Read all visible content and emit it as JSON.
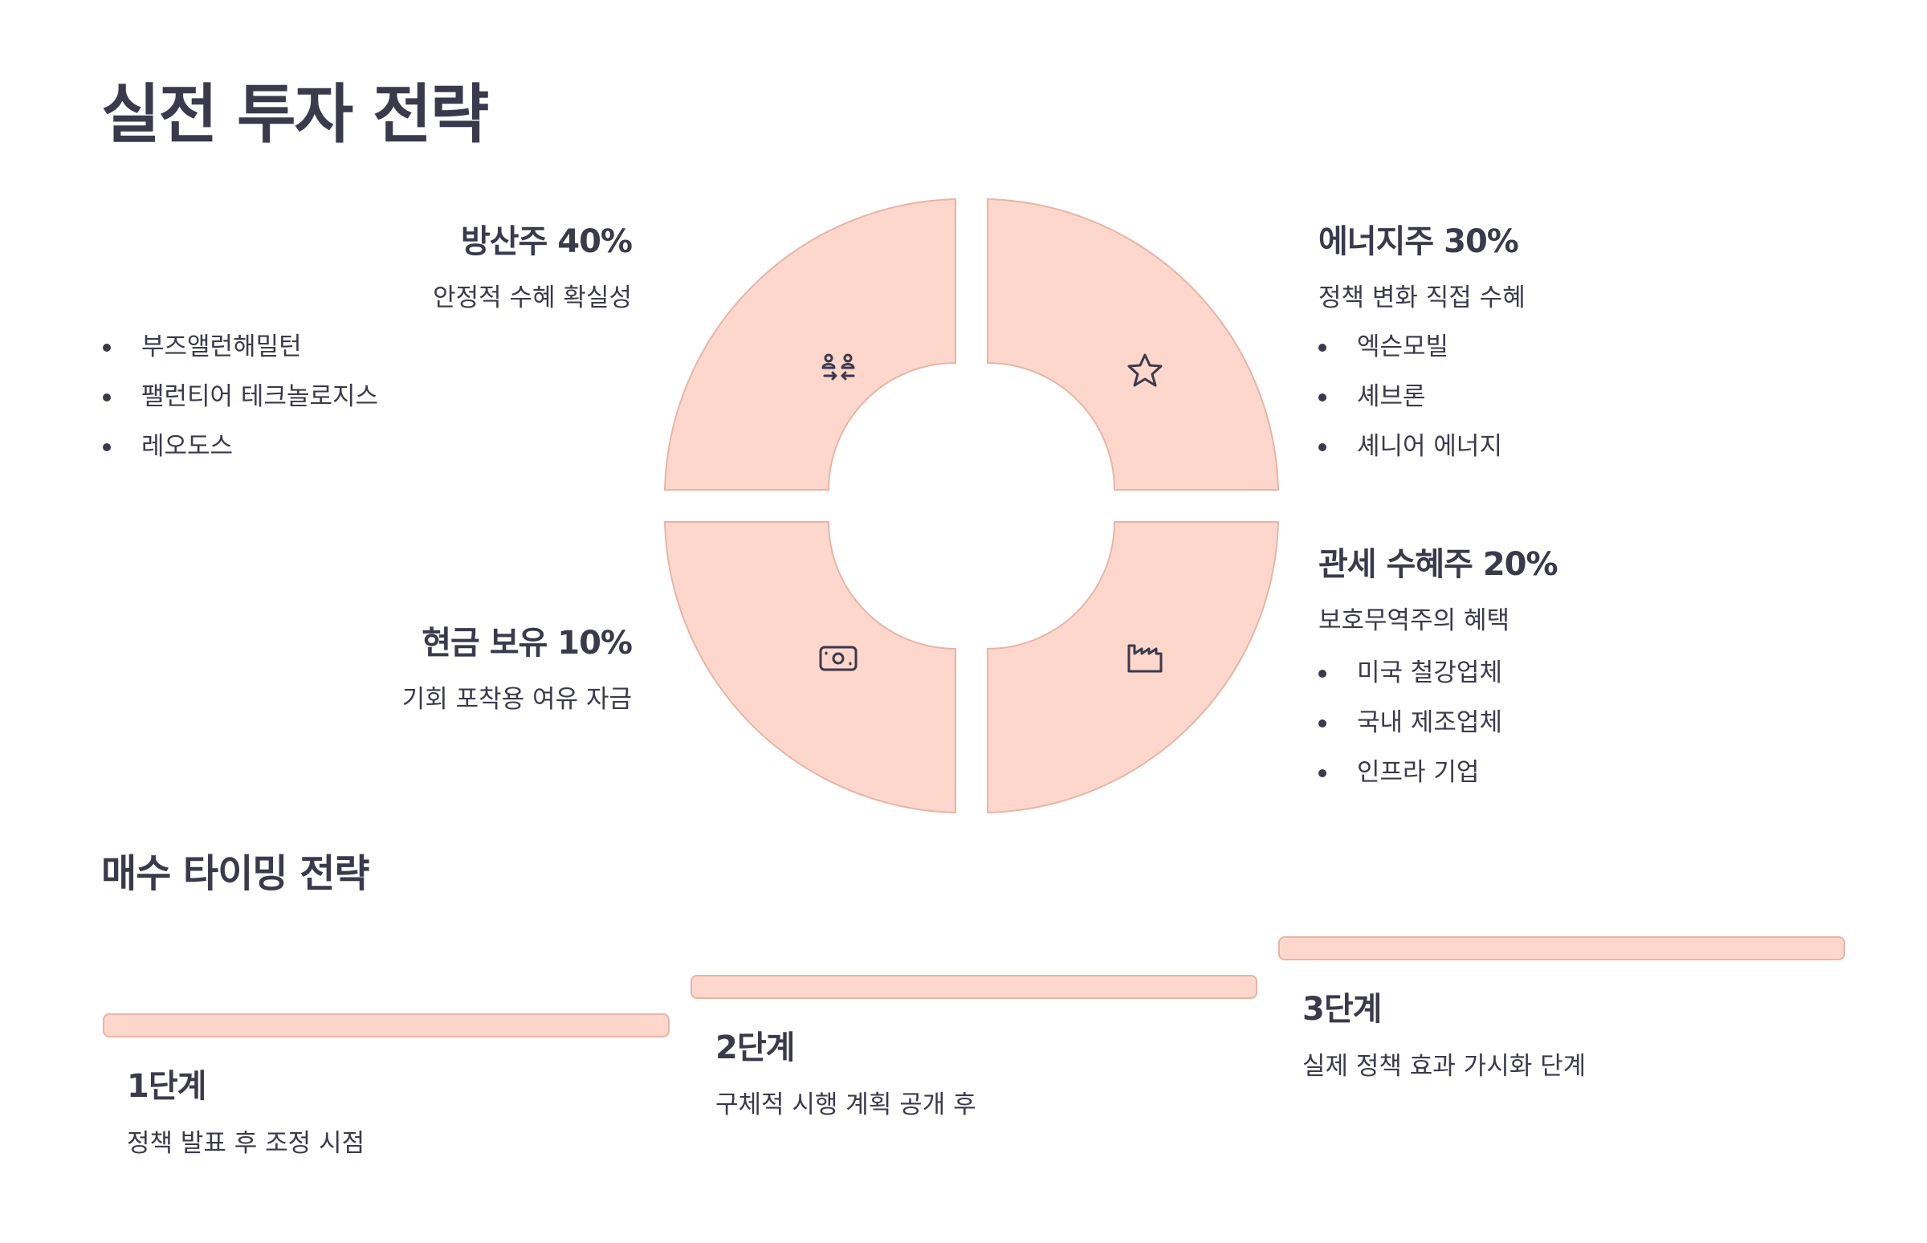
{
  "title": "실전 투자 전략",
  "portfolio": [
    {
      "heading": "방산주 40%",
      "subtitle": "안정적 수혜 확실성",
      "items": [
        "부즈앨런해밀턴",
        "팰런티어 테크놀로지스",
        "레오도스"
      ],
      "icon": "people-exchange-icon"
    },
    {
      "heading": "에너지주 30%",
      "subtitle": "정책 변화 직접 수혜",
      "items": [
        "엑슨모빌",
        "셰브론",
        "셰니어 에너지"
      ],
      "icon": "star-icon"
    },
    {
      "heading": "관세 수혜주 20%",
      "subtitle": "보호무역주의 혜택",
      "items": [
        "미국 철강업체",
        "국내 제조업체",
        "인프라 기업"
      ],
      "icon": "factory-icon"
    },
    {
      "heading": "현금 보유 10%",
      "subtitle": "기회 포착용 여유 자금",
      "items": [],
      "icon": "banknote-icon"
    }
  ],
  "timing": {
    "title": "매수 타이밍 전략",
    "steps": [
      {
        "title": "1단계",
        "desc": "정책 발표 후 조정 시점"
      },
      {
        "title": "2단계",
        "desc": "구체적 시행 계획 공개 후"
      },
      {
        "title": "3단계",
        "desc": "실제 정책 효과 가시화 단계"
      }
    ]
  },
  "colors": {
    "accent_fill": "#fdd7cb",
    "accent_stroke": "#e8b4a6",
    "text": "#3b3a4c",
    "background": "#ffffff"
  }
}
